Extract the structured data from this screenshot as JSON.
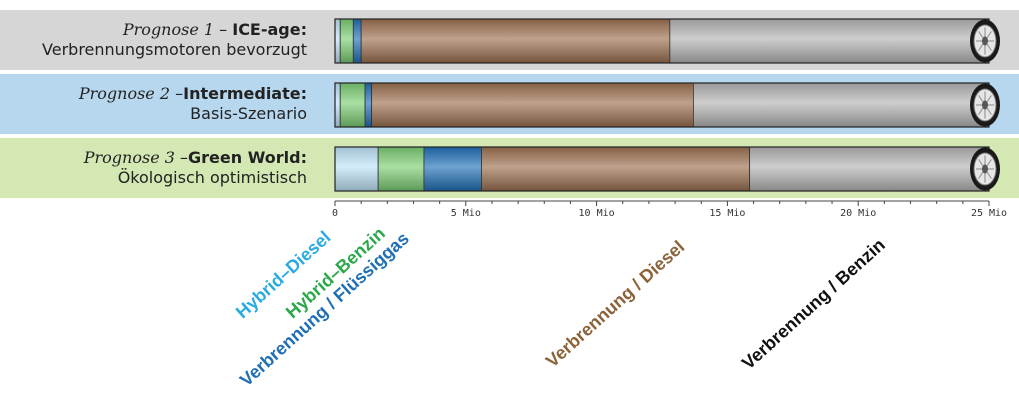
{
  "chart_data": {
    "type": "bar",
    "orientation": "horizontal",
    "stacked": true,
    "x_unit": "Mio",
    "xlim": [
      0,
      25
    ],
    "xticks": [
      0,
      5,
      10,
      15,
      20,
      25
    ],
    "xtick_labels": [
      "0",
      "5 Mio",
      "10 Mio",
      "15 Mio",
      "20 Mio",
      "25 Mio"
    ],
    "rows": [
      {
        "prefix": "Prognose 1",
        "sep": " – ",
        "name": "ICE-age:",
        "subtitle": "Verbrennungsmotoren bevorzugt",
        "bg": "#d6d6d6",
        "values": [
          0.2,
          0.5,
          0.3,
          11.8,
          12.2
        ]
      },
      {
        "prefix": "Prognose 2",
        "sep": " –",
        "name": "Intermediate:",
        "subtitle": "Basis-Szenario",
        "bg": "#b6d7ee",
        "values": [
          0.2,
          0.95,
          0.25,
          12.3,
          11.3
        ]
      },
      {
        "prefix": "Prognose 3",
        "sep": " –",
        "name": "Green World:",
        "subtitle": "Ökologisch optimistisch",
        "bg": "#d4e8b4",
        "values": [
          1.65,
          1.75,
          2.2,
          10.25,
          9.15
        ]
      }
    ],
    "series": [
      {
        "name": "Hybrid–Diesel",
        "color": "#bfe3f8",
        "label_color": "#29abe2"
      },
      {
        "name": "Hybrid–Benzin",
        "color": "#7ccd73",
        "label_color": "#2aa84a"
      },
      {
        "name": "Verbrennung / Flüssiggas",
        "color": "#2070b8",
        "label_color": "#1f6fb4"
      },
      {
        "name": "Verbrennung / Diesel",
        "color": "#9c7050",
        "label_color": "#8c6239"
      },
      {
        "name": "Verbrennung / Benzin",
        "color": "#b4b4b4",
        "label_color": "#111111"
      }
    ]
  }
}
